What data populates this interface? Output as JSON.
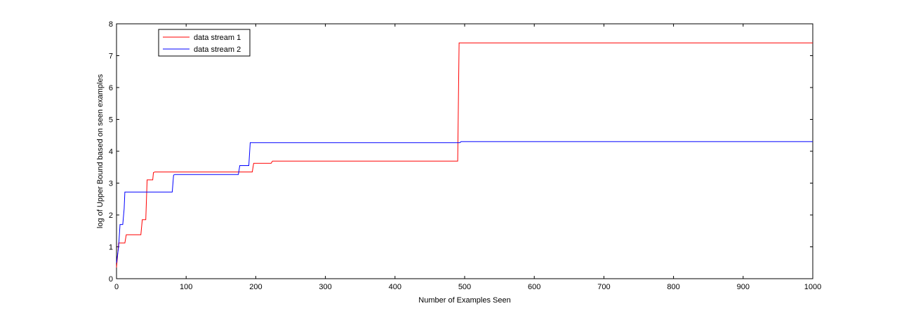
{
  "chart_data": {
    "type": "line",
    "xlabel": "Number of Examples Seen",
    "ylabel": "log of Upper Bound based on seen examples",
    "xlim": [
      0,
      1000
    ],
    "ylim": [
      0,
      8
    ],
    "xticks": [
      "0",
      "100",
      "200",
      "300",
      "400",
      "500",
      "600",
      "700",
      "800",
      "900",
      "1000"
    ],
    "yticks": [
      "0",
      "1",
      "2",
      "3",
      "4",
      "5",
      "6",
      "7",
      "8"
    ],
    "grid": false,
    "legend_position": "top-left",
    "series": [
      {
        "name": "data stream 1",
        "color": "#ff0000",
        "step": true,
        "points": [
          [
            0,
            0.35
          ],
          [
            2,
            0.85
          ],
          [
            3,
            1.12
          ],
          [
            12,
            1.12
          ],
          [
            14,
            1.38
          ],
          [
            35,
            1.38
          ],
          [
            37,
            1.85
          ],
          [
            42,
            1.85
          ],
          [
            44,
            3.1
          ],
          [
            52,
            3.1
          ],
          [
            53,
            3.33
          ],
          [
            55,
            3.35
          ],
          [
            195,
            3.35
          ],
          [
            197,
            3.62
          ],
          [
            222,
            3.62
          ],
          [
            224,
            3.69
          ],
          [
            490,
            3.69
          ],
          [
            491,
            5.55
          ],
          [
            492,
            7.4
          ],
          [
            1000,
            7.4
          ]
        ]
      },
      {
        "name": "data stream 2",
        "color": "#0000ff",
        "step": true,
        "points": [
          [
            0,
            0.5
          ],
          [
            3,
            1.0
          ],
          [
            5,
            1.7
          ],
          [
            9,
            1.7
          ],
          [
            11,
            2.2
          ],
          [
            12,
            2.72
          ],
          [
            80,
            2.72
          ],
          [
            82,
            3.25
          ],
          [
            84,
            3.27
          ],
          [
            175,
            3.27
          ],
          [
            177,
            3.55
          ],
          [
            190,
            3.55
          ],
          [
            192,
            4.27
          ],
          [
            493,
            4.27
          ],
          [
            495,
            4.3
          ],
          [
            1000,
            4.3
          ]
        ]
      }
    ]
  }
}
